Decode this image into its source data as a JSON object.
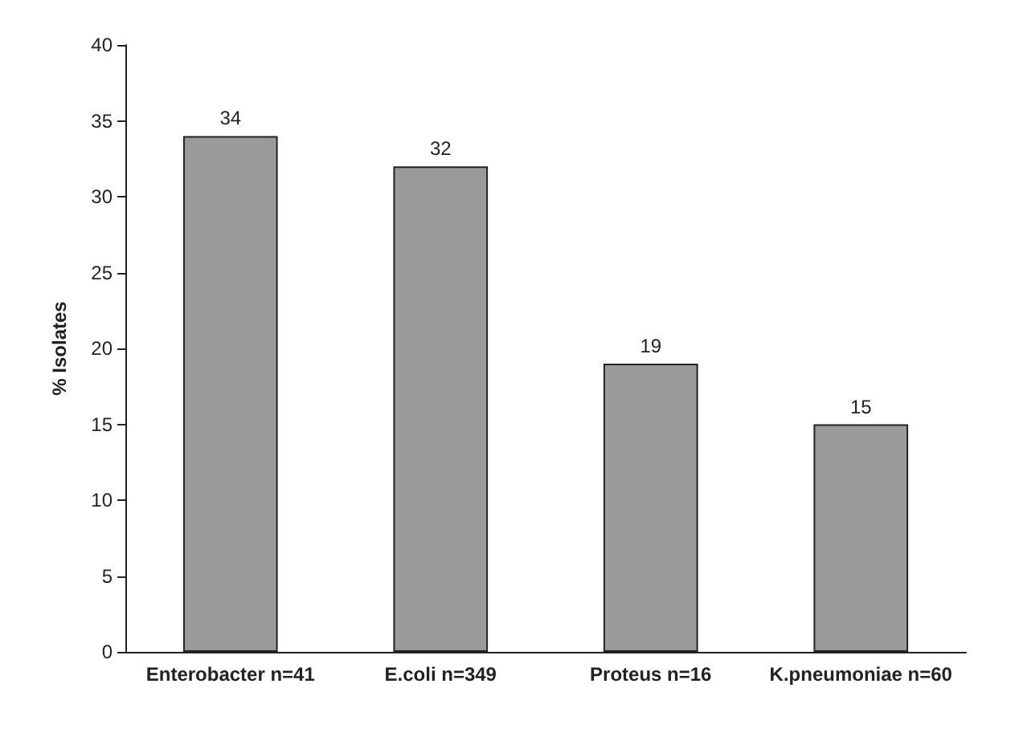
{
  "chart_data": {
    "type": "bar",
    "ylabel": "% Isolates",
    "categories": [
      "Enterobacter n=41",
      "E.coli n=349",
      "Proteus n=16",
      "K.pneumoniae n=60"
    ],
    "values": [
      34,
      32,
      19,
      15
    ],
    "color": "#9a9a9a",
    "ylim": [
      0,
      40
    ],
    "yticks": [
      0,
      5,
      10,
      15,
      20,
      25,
      30,
      35,
      40
    ],
    "data_labels": true,
    "grid": false
  }
}
